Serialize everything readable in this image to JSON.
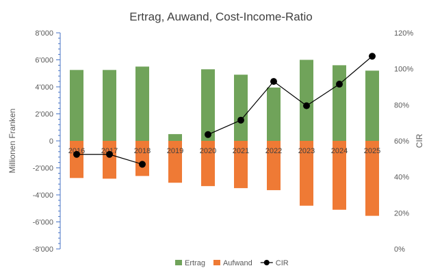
{
  "chart_data": {
    "type": "bar",
    "title": "Ertrag, Auwand, Cost-Income-Ratio",
    "categories": [
      "2016",
      "2017",
      "2018",
      "2019",
      "2020",
      "2021",
      "2022",
      "2023",
      "2024",
      "2025"
    ],
    "ylabel": "Millionen Franken",
    "y2label": "CIR",
    "ylim": [
      -8000,
      8000
    ],
    "y2lim": [
      0,
      120
    ],
    "yticks": [
      "8'000",
      "6'000",
      "4'000",
      "2'000",
      "0",
      "-2'000",
      "-4'000",
      "-6'000",
      "-8'000"
    ],
    "y2ticks": [
      "120%",
      "100%",
      "80%",
      "60%",
      "40%",
      "20%",
      "0%"
    ],
    "series": [
      {
        "name": "Ertrag",
        "kind": "bar",
        "color": "#70a35a",
        "values": [
          5250,
          5250,
          5500,
          500,
          5300,
          4900,
          3950,
          6000,
          5600,
          5200
        ]
      },
      {
        "name": "Aufwand",
        "kind": "bar",
        "color": "#ef7a35",
        "values": [
          -2750,
          -2800,
          -2600,
          -3100,
          -3350,
          -3500,
          -3650,
          -4800,
          -5100,
          -5550
        ]
      },
      {
        "name": "CIR",
        "kind": "line",
        "axis": "secondary",
        "color": "#000000",
        "values": [
          52.5,
          52.5,
          47,
          null,
          63.5,
          71.5,
          93,
          79.5,
          91.5,
          107
        ]
      }
    ],
    "legend": [
      "Ertrag",
      "Aufwand",
      "CIR"
    ],
    "legend_position": "bottom",
    "colors": {
      "ertrag": "#70a35a",
      "aufwand": "#ef7a35",
      "cir": "#000000",
      "axis": "#4472c4",
      "text": "#595959"
    }
  }
}
